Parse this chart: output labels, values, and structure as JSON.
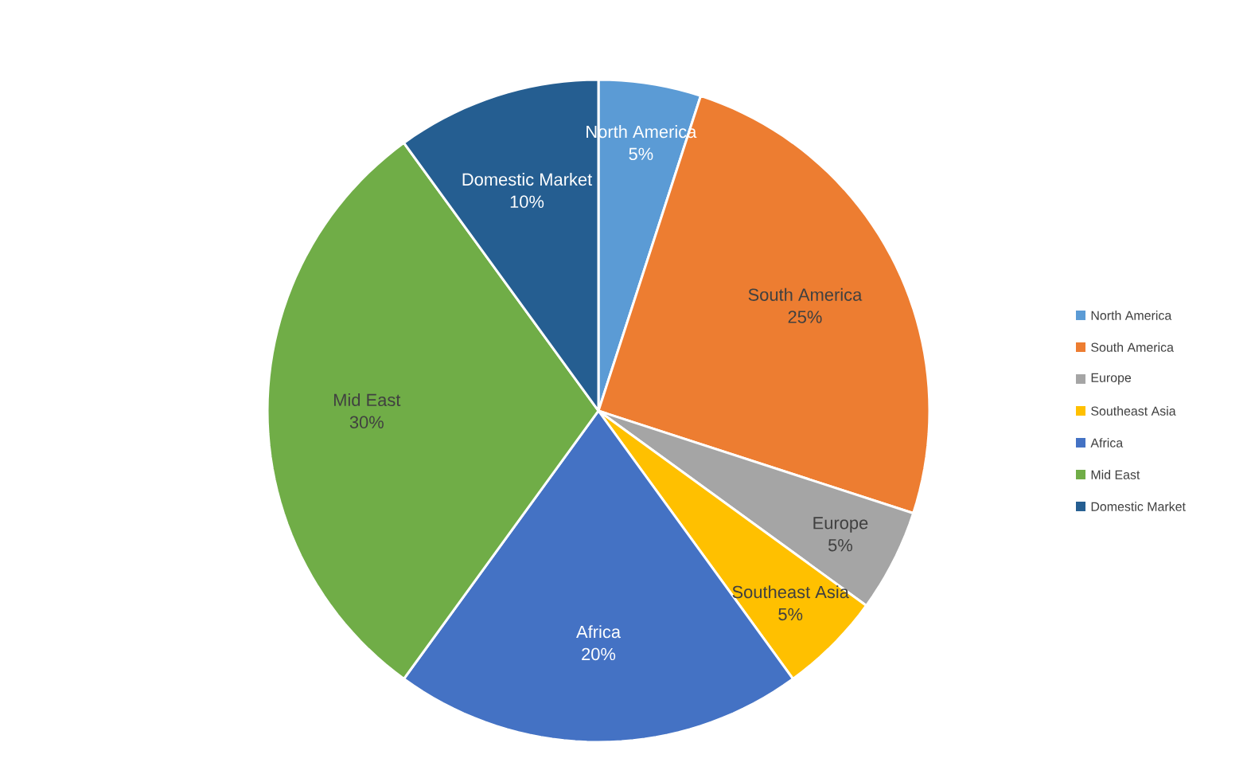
{
  "chart_data": {
    "type": "pie",
    "categories": [
      "North America",
      "South America",
      "Europe",
      "Southeast Asia",
      "Africa",
      "Mid East",
      "Domestic Market"
    ],
    "values": [
      5,
      25,
      5,
      5,
      20,
      30,
      10
    ],
    "value_labels": [
      "5%",
      "25%",
      "5%",
      "5%",
      "20%",
      "30%",
      "10%"
    ],
    "colors": [
      "#5b9bd5",
      "#ed7d31",
      "#a5a5a5",
      "#ffc000",
      "#4472c4",
      "#70ad47",
      "#255e91"
    ],
    "legend": "right"
  }
}
